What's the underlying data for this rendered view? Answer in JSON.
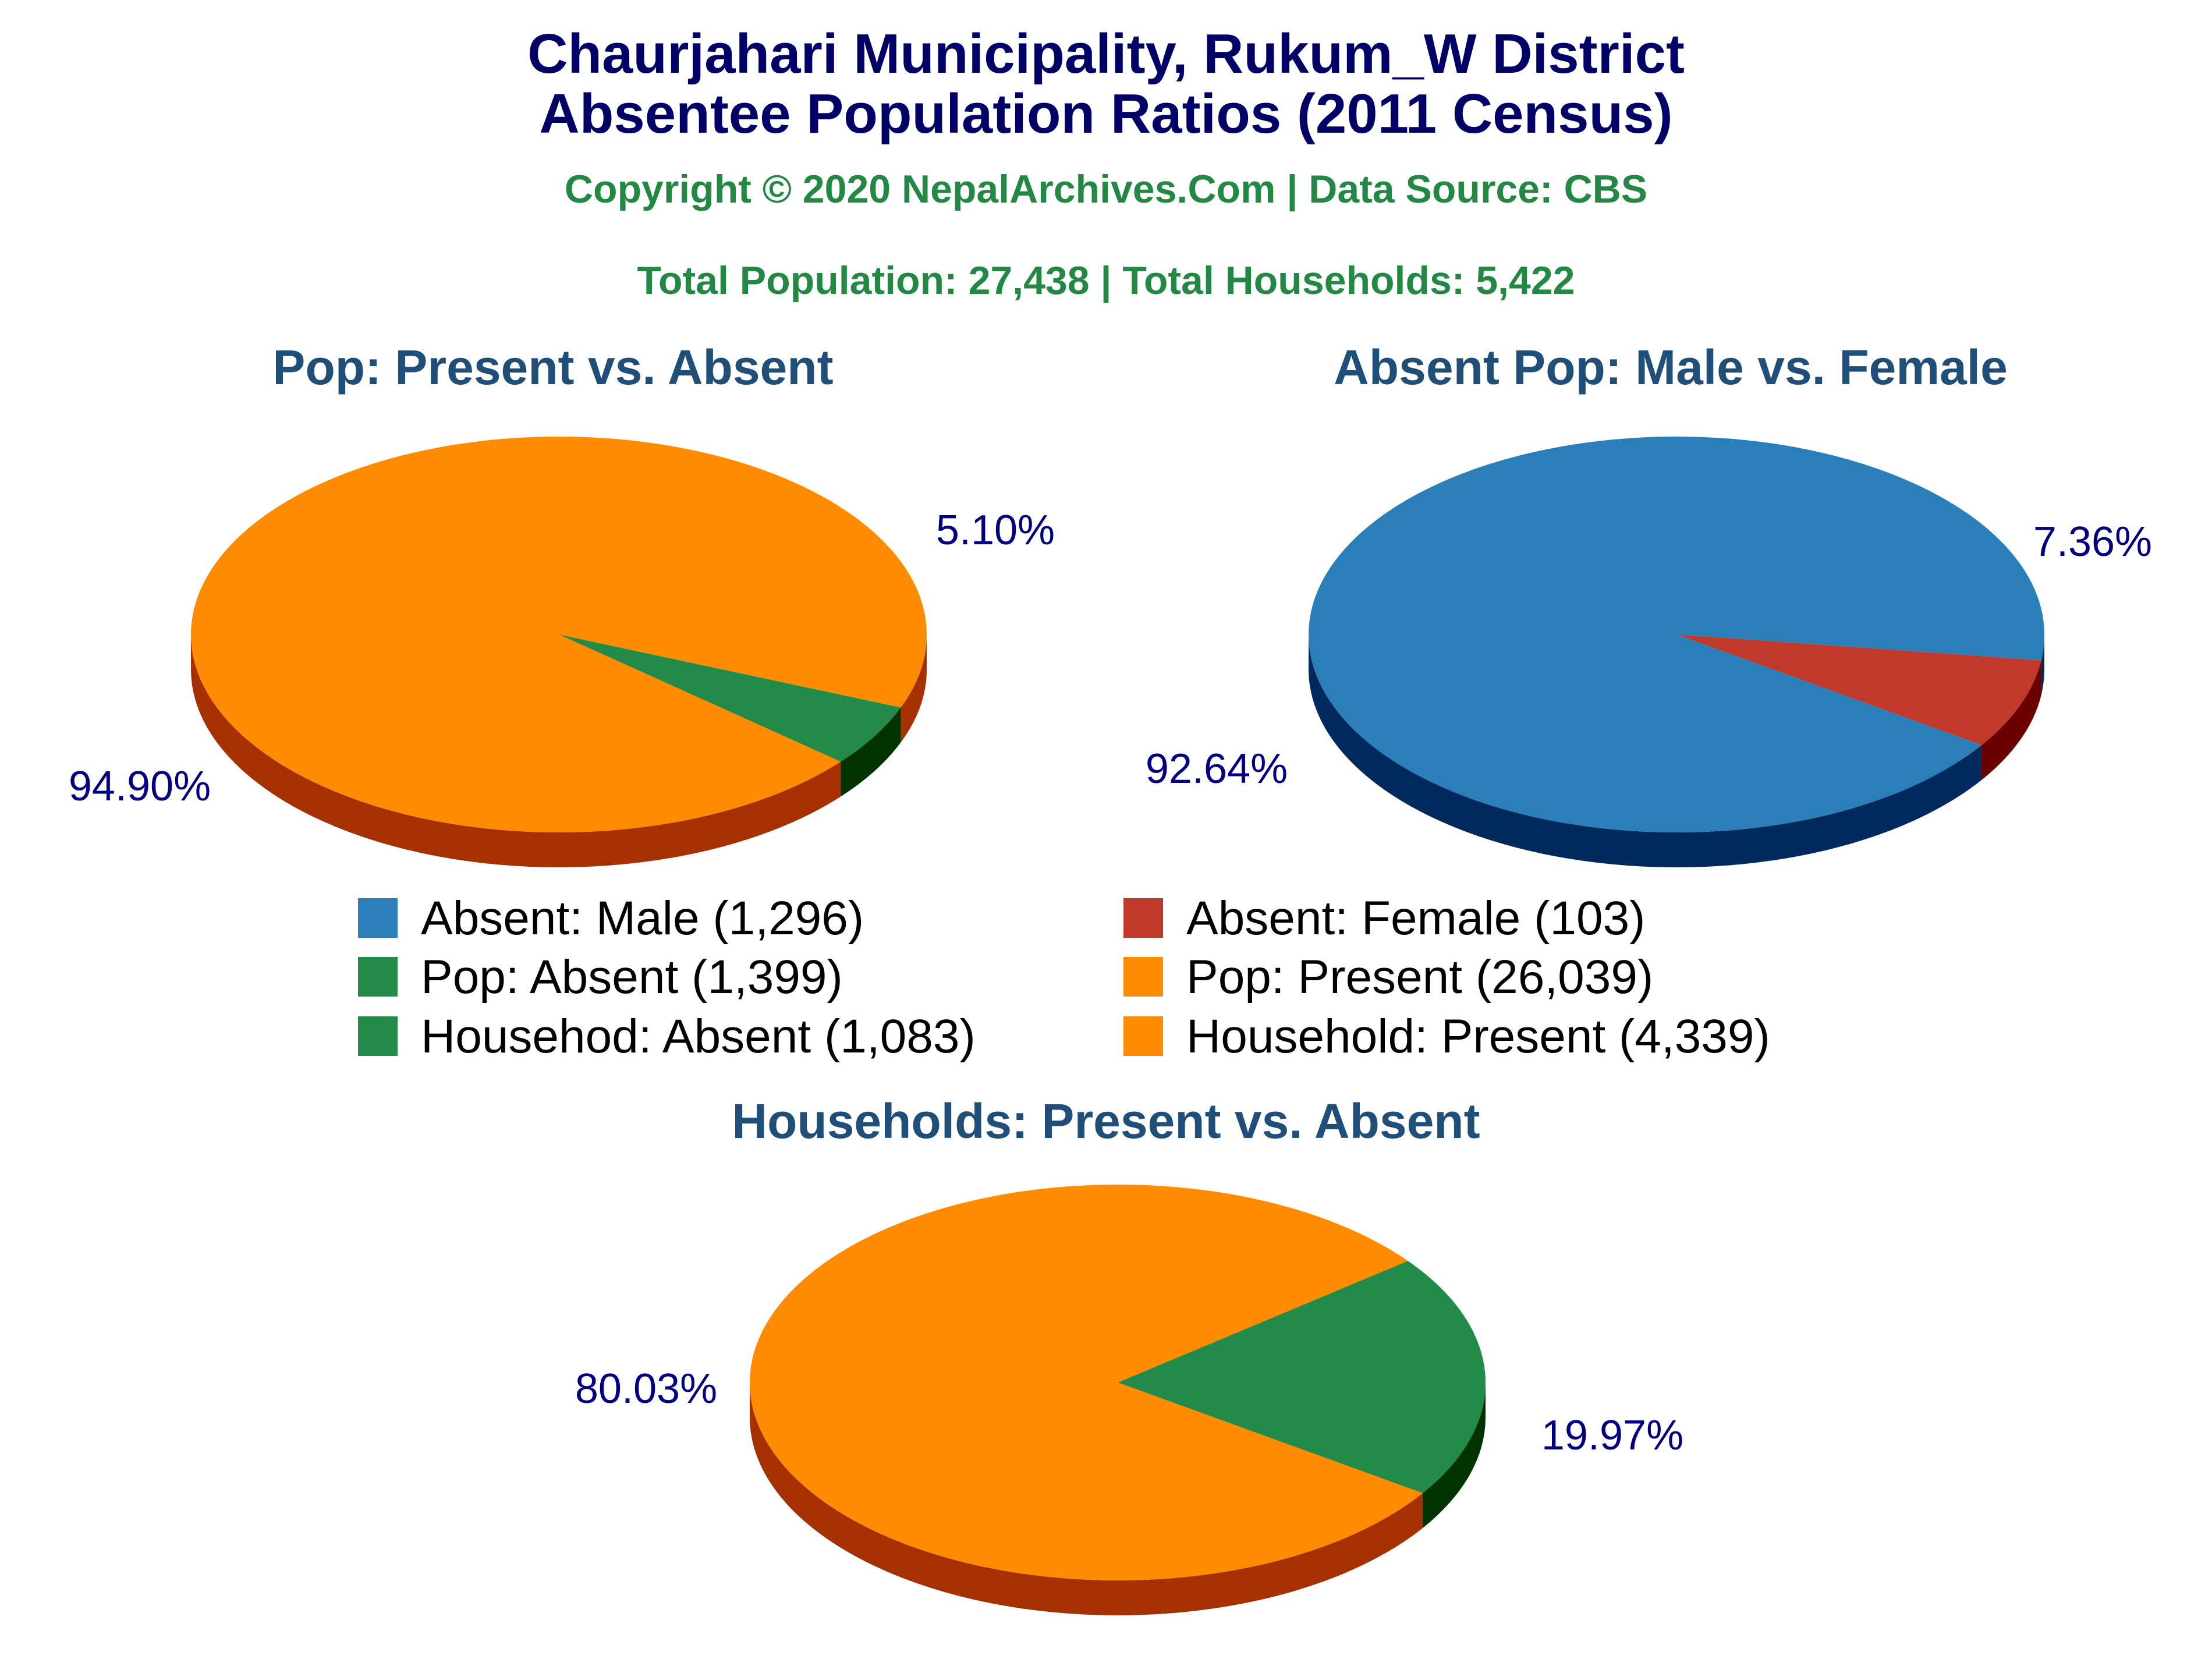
{
  "header": {
    "title_line1": "Chaurjahari Municipality, Rukum_W District",
    "title_line2": "Absentee Population Ratios (2011 Census)",
    "copyright": "Copyright © 2020 NepalArchives.Com | Data Source: CBS",
    "totals": "Total Population: 27,438 | Total Households: 5,422"
  },
  "chart_data": [
    {
      "type": "pie",
      "title": "Pop: Present vs. Absent",
      "slices": [
        {
          "name": "Pop: Absent",
          "value": 1399,
          "label": "5.10%",
          "color": "#228B4A",
          "side_color": "#003300"
        },
        {
          "name": "Pop: Present",
          "value": 26039,
          "label": "94.90%",
          "color": "#FF8C00",
          "side_color": "#A63000"
        }
      ]
    },
    {
      "type": "pie",
      "title": "Absent Pop: Male vs. Female",
      "slices": [
        {
          "name": "Absent: Female",
          "value": 103,
          "label": "7.36%",
          "color": "#C0392B",
          "side_color": "#6B0000"
        },
        {
          "name": "Absent: Male",
          "value": 1296,
          "label": "92.64%",
          "color": "#2A7FB8",
          "side_color": "#002A5E"
        }
      ]
    },
    {
      "type": "pie",
      "title": "Households: Present vs. Absent",
      "slices": [
        {
          "name": "Household: Absent",
          "value": 1083,
          "label": "19.97%",
          "color": "#228B4A",
          "side_color": "#003300"
        },
        {
          "name": "Household: Present",
          "value": 4339,
          "label": "80.03%",
          "color": "#FF8C00",
          "side_color": "#A63000"
        }
      ]
    }
  ],
  "legend": [
    {
      "label": "Absent: Male (1,296)",
      "color": "#2A7FB8"
    },
    {
      "label": "Absent: Female (103)",
      "color": "#C0392B"
    },
    {
      "label": "Pop: Absent (1,399)",
      "color": "#228B4A"
    },
    {
      "label": "Pop: Present (26,039)",
      "color": "#FF8C00"
    },
    {
      "label": "Househod: Absent (1,083)",
      "color": "#228B4A"
    },
    {
      "label": "Household: Present (4,339)",
      "color": "#FF8C00"
    }
  ]
}
